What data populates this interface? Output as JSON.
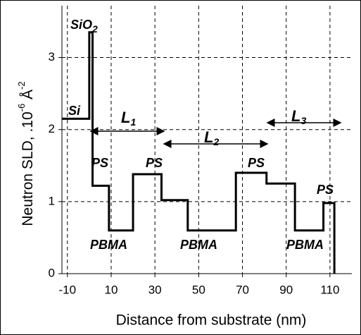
{
  "chart_data": {
    "type": "line",
    "xlabel": "Distance from substrate (nm)",
    "ylabel": {
      "text": "Neutron SLD, .10",
      "sup1": "-6",
      "unit": " Å",
      "sup2": "-2"
    },
    "x": [
      -12.5,
      0,
      0,
      1.5,
      1.5,
      9,
      9,
      20,
      20,
      33,
      33,
      45,
      45,
      67,
      67,
      81,
      81,
      94,
      94,
      107,
      107,
      112,
      112
    ],
    "values": [
      2.15,
      2.15,
      3.35,
      3.35,
      1.22,
      1.22,
      0.6,
      0.6,
      1.38,
      1.38,
      1.02,
      1.02,
      0.6,
      0.6,
      1.4,
      1.4,
      1.25,
      1.25,
      0.6,
      0.6,
      0.98,
      0.98,
      0
    ],
    "color": "#000000",
    "xlim": [
      -12.5,
      120
    ],
    "xticks": [
      -10,
      10,
      30,
      50,
      70,
      90,
      110
    ],
    "ylim": [
      0,
      3.72
    ],
    "yticks": [
      0,
      1,
      2,
      3
    ],
    "grid": true,
    "annotations": [
      {
        "text": "Si"
      },
      {
        "text": "SiO",
        "sub": "2"
      },
      {
        "text": "PS"
      },
      {
        "text": "PS"
      },
      {
        "text": "PS"
      },
      {
        "text": "PS"
      },
      {
        "text": "PBMA"
      },
      {
        "text": "PBMA"
      },
      {
        "text": "PBMA"
      },
      {
        "text": "L",
        "sub": "1"
      },
      {
        "text": "L",
        "sub": "2"
      },
      {
        "text": "L",
        "sub": "3"
      }
    ]
  }
}
